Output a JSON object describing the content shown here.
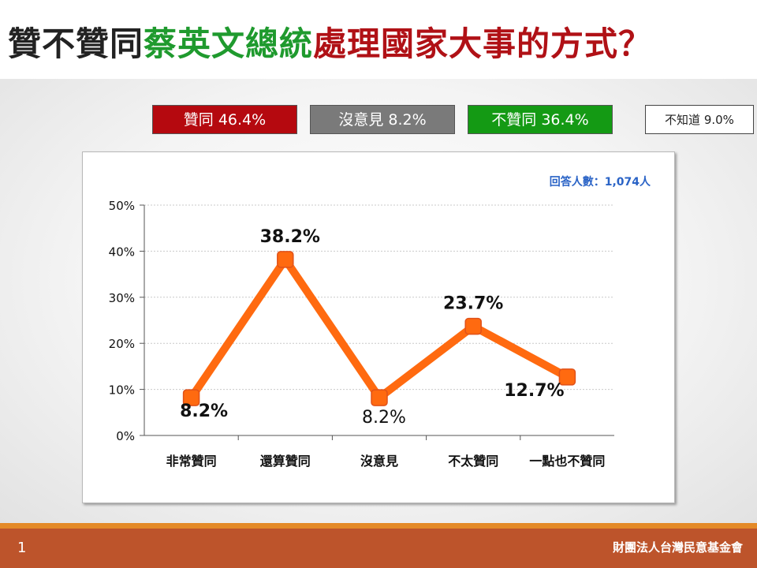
{
  "title": {
    "part1": "贊不贊同",
    "part2": "蔡英文總統",
    "part3": "處理國家大事的方式？",
    "colors": {
      "part1": "#222222",
      "part2": "#1f9a2e",
      "part3": "#b01116"
    }
  },
  "summary": [
    {
      "label": "贊同 46.4%",
      "color": "#b5090f"
    },
    {
      "label": "沒意見 8.2%",
      "color": "#7a7a7a"
    },
    {
      "label": "不贊同 36.4%",
      "color": "#149a14"
    },
    {
      "label": "不知道 9.0%",
      "color": "#ffffff"
    }
  ],
  "respondents": "回答人數：1,074人",
  "chart_data": {
    "type": "line",
    "categories": [
      "非常贊同",
      "還算贊同",
      "沒意見",
      "不太贊同",
      "一點也不贊同"
    ],
    "series": [
      {
        "values": [
          8.2,
          38.2,
          8.2,
          23.7,
          12.7
        ],
        "color": "#ff6a10"
      }
    ],
    "data_labels": [
      "8.2%",
      "38.2%",
      "8.2%",
      "23.7%",
      "12.7%"
    ],
    "ylim": [
      0,
      50
    ],
    "yticks": [
      0,
      10,
      20,
      30,
      40,
      50
    ],
    "ytick_labels": [
      "0%",
      "10%",
      "20%",
      "30%",
      "40%",
      "50%"
    ],
    "grid": true,
    "title": "",
    "xlabel": "",
    "ylabel": ""
  },
  "footer": {
    "page": "1",
    "org": "財團法人台灣民意基金會"
  }
}
